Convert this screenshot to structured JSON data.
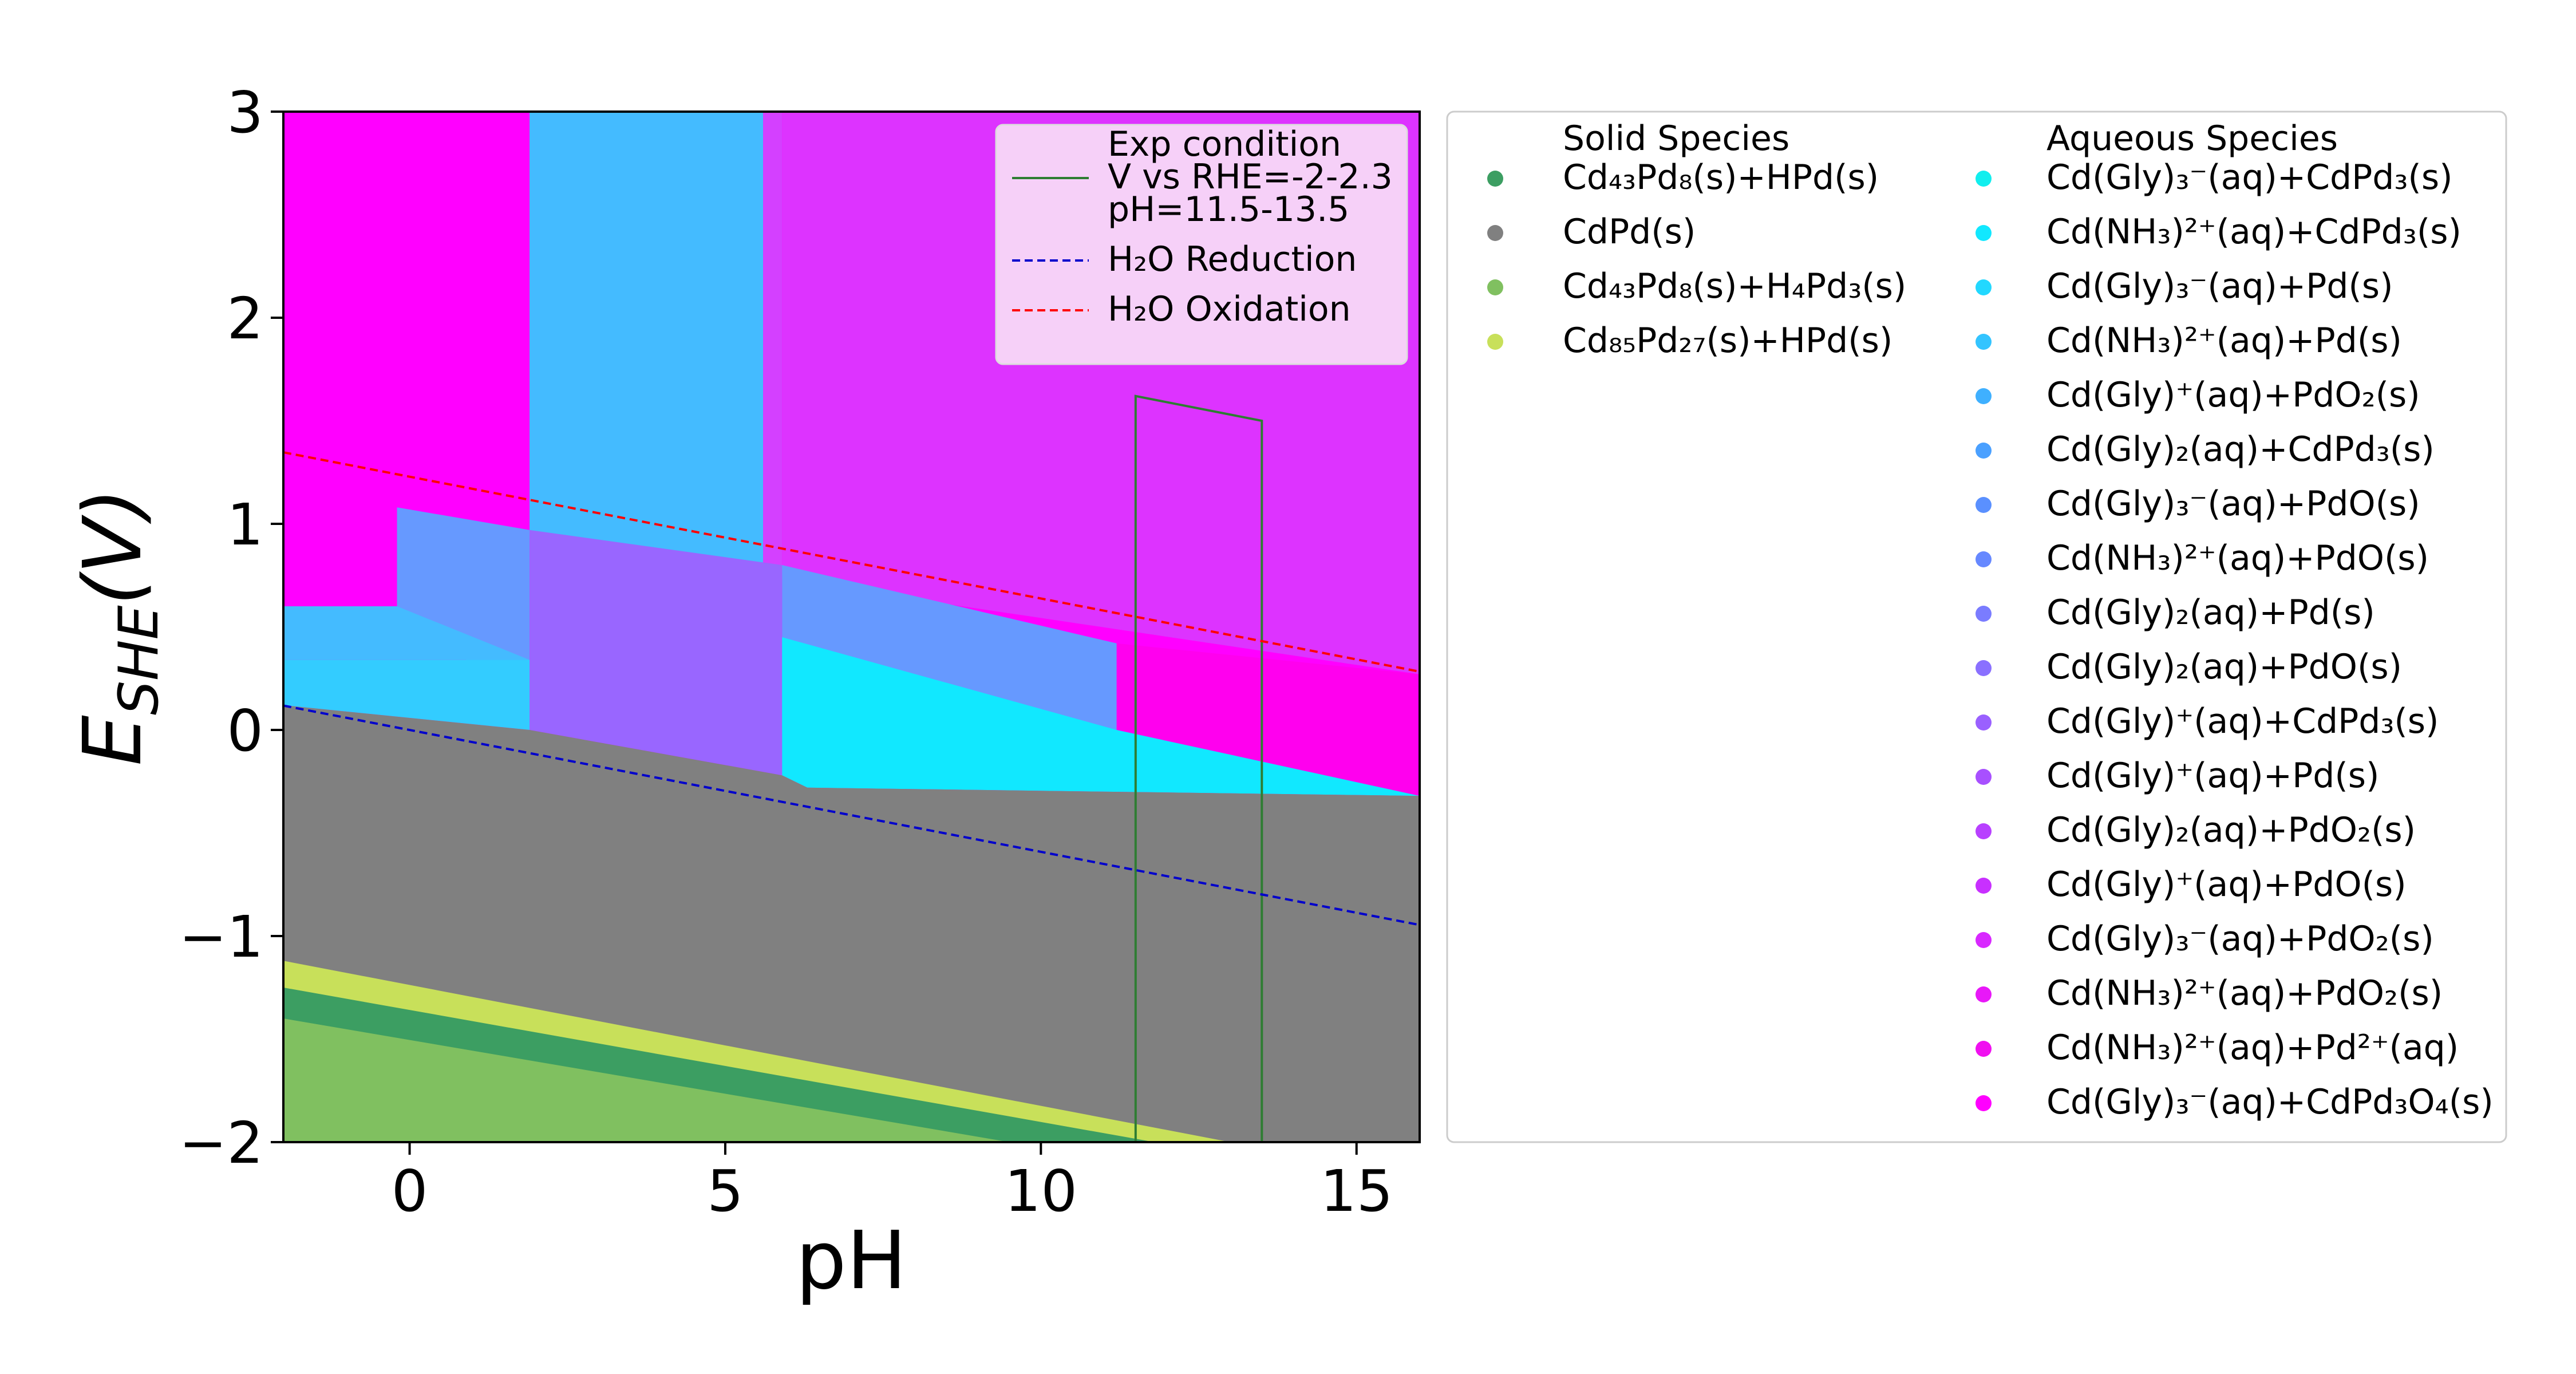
{
  "chart_data": {
    "type": "area",
    "xlabel": "pH",
    "ylabel": "E_SHE(V)",
    "xlim": [
      -2,
      16
    ],
    "ylim": [
      -2,
      3
    ],
    "x_ticks": [
      0,
      5,
      10,
      15
    ],
    "y_ticks": [
      -2,
      -1,
      0,
      1,
      2,
      3
    ],
    "x_tick_labels": [
      "0",
      "5",
      "10",
      "15"
    ],
    "y_tick_labels": [
      "−2",
      "−1",
      "0",
      "1",
      "2",
      "3"
    ],
    "grid": false,
    "regions": [
      {
        "label": "Cd(Gly)₃⁻(aq)+CdPd₃O₄(s)",
        "color": "#ff00ff",
        "polygon": [
          [
            -2,
            3
          ],
          [
            16,
            3
          ],
          [
            16,
            -2
          ],
          [
            -2,
            -2
          ]
        ]
      },
      {
        "label": "Cd(NH₃)²⁺(aq)+Pd(s)",
        "color": "#44bbff",
        "polygon": [
          [
            1.9,
            3
          ],
          [
            5.6,
            3
          ],
          [
            5.6,
            0.75
          ],
          [
            1.9,
            0.95
          ]
        ]
      },
      {
        "label": "Cd(Gly)₂(aq)+PdO₂(s)",
        "color": "#d440ff",
        "polygon": [
          [
            5.6,
            3
          ],
          [
            5.9,
            3
          ],
          [
            5.9,
            0.73
          ],
          [
            5.6,
            0.75
          ]
        ]
      },
      {
        "label": "Cd(Gly)₃⁻(aq)+PdO₂(s)",
        "color": "#dd33ff",
        "polygon": [
          [
            5.9,
            3
          ],
          [
            16,
            3
          ],
          [
            16,
            0.27
          ],
          [
            5.9,
            0.73
          ]
        ]
      },
      {
        "label": "Cd(Gly)₃⁻(aq)+PdO(s)",
        "color": "#6699ff",
        "polygon": [
          [
            -0.2,
            1.08
          ],
          [
            1.9,
            0.97
          ],
          [
            1.9,
            0.1
          ],
          [
            -0.2,
            0.6
          ]
        ]
      },
      {
        "label": "Cd(Gly)₂(aq)+PdO(s)",
        "color": "#9966ff",
        "polygon": [
          [
            1.9,
            0.97
          ],
          [
            5.9,
            0.8
          ],
          [
            5.9,
            -0.22
          ],
          [
            1.9,
            0.0
          ]
        ]
      },
      {
        "label": "Cd(NH₃)²⁺(aq)+PdO(s)",
        "color": "#6699ff",
        "polygon": [
          [
            5.9,
            0.8
          ],
          [
            11.2,
            0.42
          ],
          [
            11.2,
            0.0
          ],
          [
            5.9,
            0.0
          ]
        ]
      },
      {
        "label": "Cd(NH₃)²⁺(aq)+PdO₂(s)",
        "color": "#ff00ee",
        "polygon": [
          [
            11.2,
            0.42
          ],
          [
            16,
            0.27
          ],
          [
            16,
            -0.32
          ],
          [
            11.2,
            -0.32
          ]
        ]
      },
      {
        "label": "Cd(NH₃)²⁺(aq)+Pd(s)",
        "color": "#44bbff",
        "polygon": [
          [
            -2,
            0.6
          ],
          [
            -0.2,
            0.6
          ],
          [
            1.9,
            0.34
          ],
          [
            -2,
            0.34
          ]
        ]
      },
      {
        "label": "Cd(Gly)₃⁻(aq)+Pd(s)",
        "color": "#33ccff",
        "polygon": [
          [
            -2,
            0.34
          ],
          [
            1.9,
            0.34
          ],
          [
            1.9,
            0.0
          ],
          [
            -2,
            0.12
          ]
        ]
      },
      {
        "label": "Cd(NH₃)²⁺(aq)+CdPd₃(s)",
        "color": "#11e8ff",
        "polygon": [
          [
            5.9,
            0.45
          ],
          [
            11.2,
            0.0
          ],
          [
            16,
            -0.32
          ],
          [
            6.3,
            -0.28
          ],
          [
            5.9,
            -0.22
          ]
        ]
      },
      {
        "label": "CdPd(s)",
        "color": "#808080",
        "polygon": [
          [
            -2,
            0.12
          ],
          [
            1.9,
            0.0
          ],
          [
            5.9,
            -0.22
          ],
          [
            6.3,
            -0.28
          ],
          [
            16,
            -0.32
          ],
          [
            16,
            -2
          ],
          [
            -2,
            -2
          ]
        ]
      },
      {
        "label": "Cd₈₅Pd₂₇(s)+HPd(s)",
        "color": "#c8e05a",
        "polygon": [
          [
            -2,
            -1.12
          ],
          [
            13.0,
            -2.0
          ],
          [
            -2,
            -2.0
          ]
        ]
      },
      {
        "label": "Cd₄₃Pd₈(s)+HPd(s)",
        "color": "#3c9e62",
        "polygon": [
          [
            -2,
            -1.25
          ],
          [
            11.8,
            -2.0
          ],
          [
            -2,
            -2.0
          ]
        ]
      },
      {
        "label": "Cd₄₃Pd₈(s)+H₄Pd₃(s)",
        "color": "#80c060",
        "polygon": [
          [
            -2,
            -1.4
          ],
          [
            9.5,
            -2.0
          ],
          [
            -2,
            -2.0
          ]
        ]
      }
    ],
    "lines": [
      {
        "name": "Exp condition\nV vs RHE=-2-2.3\npH=11.5-13.5",
        "color": "#2e7d32",
        "style": "solid",
        "points": [
          [
            11.5,
            -2
          ],
          [
            11.5,
            1.62
          ],
          [
            13.5,
            1.5
          ],
          [
            13.5,
            -2
          ]
        ]
      },
      {
        "name": "H₂O Reduction",
        "color": "#0000cc",
        "style": "dashed",
        "points": [
          [
            -2,
            0.118
          ],
          [
            16,
            -0.946
          ]
        ]
      },
      {
        "name": "H₂O Oxidation",
        "color": "#ff0000",
        "style": "dashed",
        "points": [
          [
            -2,
            1.347
          ],
          [
            16,
            0.283
          ]
        ]
      }
    ],
    "inner_legend": {
      "placement": "top-right",
      "entries": [
        {
          "lines": [
            "Exp condition",
            "V vs RHE=-2-2.3",
            "pH=11.5-13.5"
          ],
          "color": "#2e7d32",
          "style": "solid"
        },
        {
          "lines": [
            "H₂O Reduction"
          ],
          "color": "#0000cc",
          "style": "dashed"
        },
        {
          "lines": [
            "H₂O Oxidation"
          ],
          "color": "#ff0000",
          "style": "dashed"
        }
      ]
    },
    "side_legend": {
      "placement": "right",
      "solid_title": "Solid Species",
      "aqueous_title": "Aqueous Species",
      "solid": [
        {
          "label": "Cd₄₃Pd₈(s)+HPd(s)",
          "color": "#3c9e62"
        },
        {
          "label": "CdPd(s)",
          "color": "#808080"
        },
        {
          "label": "Cd₄₃Pd₈(s)+H₄Pd₃(s)",
          "color": "#80c060"
        },
        {
          "label": "Cd₈₅Pd₂₇(s)+HPd(s)",
          "color": "#c8e05a"
        }
      ],
      "aqueous": [
        {
          "label": "Cd(Gly)₃⁻(aq)+CdPd₃(s)",
          "color": "#11eeee"
        },
        {
          "label": "Cd(NH₃)²⁺(aq)+CdPd₃(s)",
          "color": "#11e8ff"
        },
        {
          "label": "Cd(Gly)₃⁻(aq)+Pd(s)",
          "color": "#22d8ff"
        },
        {
          "label": "Cd(NH₃)²⁺(aq)+Pd(s)",
          "color": "#33c4ff"
        },
        {
          "label": "Cd(Gly)⁺(aq)+PdO₂(s)",
          "color": "#3fb0ff"
        },
        {
          "label": "Cd(Gly)₂(aq)+CdPd₃(s)",
          "color": "#4aa0ff"
        },
        {
          "label": "Cd(Gly)₃⁻(aq)+PdO(s)",
          "color": "#5a90ff"
        },
        {
          "label": "Cd(NH₃)²⁺(aq)+PdO(s)",
          "color": "#6688ff"
        },
        {
          "label": "Cd(Gly)₂(aq)+Pd(s)",
          "color": "#7a7cff"
        },
        {
          "label": "Cd(Gly)₂(aq)+PdO(s)",
          "color": "#8a70ff"
        },
        {
          "label": "Cd(Gly)⁺(aq)+CdPd₃(s)",
          "color": "#9a60ff"
        },
        {
          "label": "Cd(Gly)⁺(aq)+Pd(s)",
          "color": "#a850ff"
        },
        {
          "label": "Cd(Gly)₂(aq)+PdO₂(s)",
          "color": "#b840ff"
        },
        {
          "label": "Cd(Gly)⁺(aq)+PdO(s)",
          "color": "#c830ff"
        },
        {
          "label": "Cd(Gly)₃⁻(aq)+PdO₂(s)",
          "color": "#d828ff"
        },
        {
          "label": "Cd(NH₃)²⁺(aq)+PdO₂(s)",
          "color": "#e818f8"
        },
        {
          "label": "Cd(NH₃)²⁺(aq)+Pd²⁺(aq)",
          "color": "#f010f0"
        },
        {
          "label": "Cd(Gly)₃⁻(aq)+CdPd₃O₄(s)",
          "color": "#ff00ff"
        }
      ]
    }
  }
}
